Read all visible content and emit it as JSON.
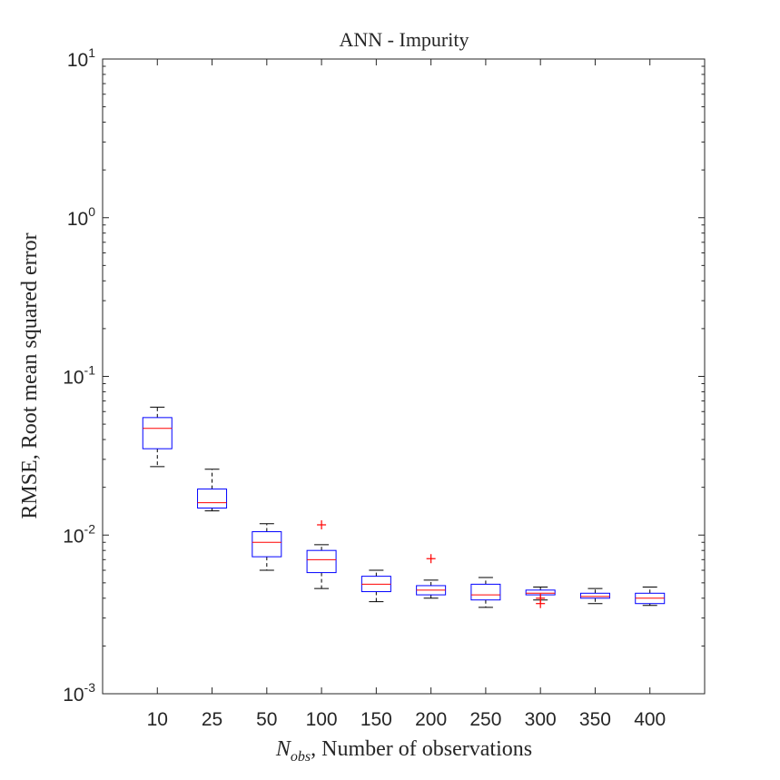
{
  "chart_data": {
    "type": "box",
    "title": "ANN - Impurity",
    "xlabel_sym": "N",
    "xlabel_sub": "obs",
    "xlabel_rest": ", Number of observations",
    "ylabel": "RMSE, Root mean squared error",
    "yscale": "log",
    "ylim": [
      0.001,
      10
    ],
    "yticks": [
      {
        "base": "10",
        "exp": "-3",
        "value": 0.001
      },
      {
        "base": "10",
        "exp": "-2",
        "value": 0.01
      },
      {
        "base": "10",
        "exp": "-1",
        "value": 0.1
      },
      {
        "base": "10",
        "exp": "0",
        "value": 1
      },
      {
        "base": "10",
        "exp": "1",
        "value": 10
      }
    ],
    "categories": [
      "10",
      "25",
      "50",
      "100",
      "150",
      "200",
      "250",
      "300",
      "350",
      "400"
    ],
    "boxes": [
      {
        "min": 0.027,
        "q1": 0.035,
        "median": 0.047,
        "q3": 0.055,
        "max": 0.064,
        "outliers": []
      },
      {
        "min": 0.0142,
        "q1": 0.0148,
        "median": 0.016,
        "q3": 0.0195,
        "max": 0.026,
        "outliers": []
      },
      {
        "min": 0.006,
        "q1": 0.0073,
        "median": 0.009,
        "q3": 0.0105,
        "max": 0.0118,
        "outliers": []
      },
      {
        "min": 0.0046,
        "q1": 0.0058,
        "median": 0.007,
        "q3": 0.008,
        "max": 0.0087,
        "outliers": [
          0.0116
        ]
      },
      {
        "min": 0.0038,
        "q1": 0.0044,
        "median": 0.0049,
        "q3": 0.0055,
        "max": 0.006,
        "outliers": []
      },
      {
        "min": 0.004,
        "q1": 0.0042,
        "median": 0.0045,
        "q3": 0.0048,
        "max": 0.0052,
        "outliers": [
          0.0071
        ]
      },
      {
        "min": 0.0035,
        "q1": 0.0039,
        "median": 0.0042,
        "q3": 0.0049,
        "max": 0.0054,
        "outliers": []
      },
      {
        "min": 0.0039,
        "q1": 0.0042,
        "median": 0.0043,
        "q3": 0.0045,
        "max": 0.0047,
        "outliers": [
          0.0037,
          0.004
        ]
      },
      {
        "min": 0.0037,
        "q1": 0.004,
        "median": 0.0041,
        "q3": 0.0043,
        "max": 0.0046,
        "outliers": []
      },
      {
        "min": 0.0036,
        "q1": 0.0037,
        "median": 0.004,
        "q3": 0.0043,
        "max": 0.0047,
        "outliers": []
      }
    ],
    "colors": {
      "box": "#0000ff",
      "median": "#ff0000",
      "whisker": "#000000",
      "outlier": "#ff0000",
      "axis": "#262626"
    },
    "grid": false,
    "legend": "none"
  }
}
